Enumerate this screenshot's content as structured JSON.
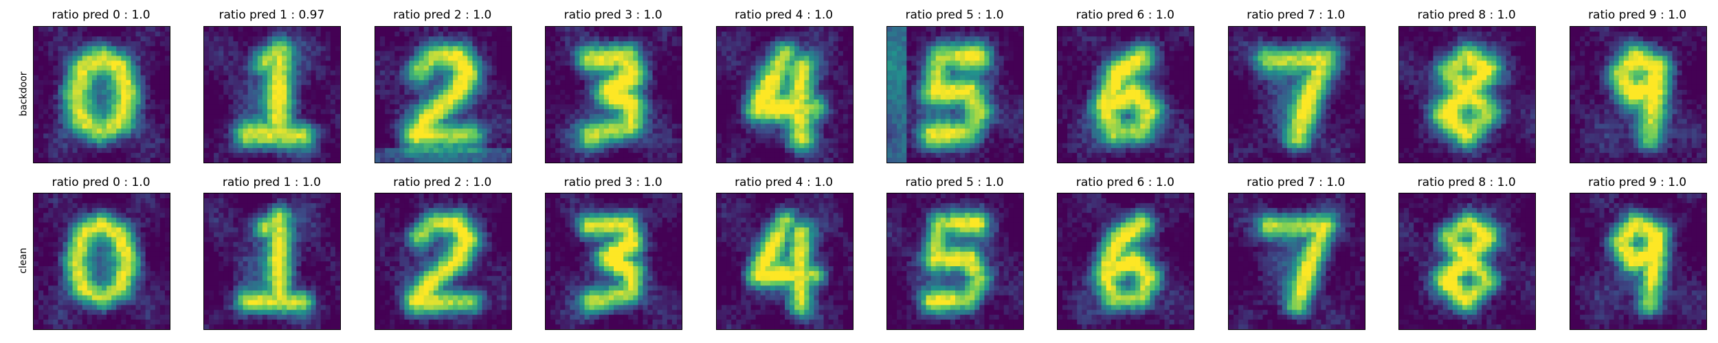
{
  "chart_data": {
    "type": "heatmap",
    "colormap": "viridis",
    "colors": [
      "#440154",
      "#3b528b",
      "#21918c",
      "#5ec962",
      "#fde725"
    ],
    "grid": false,
    "rows": [
      {
        "label": "backdoor",
        "titles": [
          "ratio pred 0 :  1.0",
          "ratio pred 1 : 0.97",
          "ratio pred 2 :  1.0",
          "ratio pred 3 :  1.0",
          "ratio pred 4 :  1.0",
          "ratio pred 5 :  1.0",
          "ratio pred 6 :  1.0",
          "ratio pred 7 :  1.0",
          "ratio pred 8 :  1.0",
          "ratio pred 9 :  1.0"
        ]
      },
      {
        "label": "clean",
        "titles": [
          "ratio pred 0 :  1.0",
          "ratio pred 1 :  1.0",
          "ratio pred 2 :  1.0",
          "ratio pred 3 :  1.0",
          "ratio pred 4 :  1.0",
          "ratio pred 5 :  1.0",
          "ratio pred 6 :  1.0",
          "ratio pred 7 :  1.0",
          "ratio pred 8 :  1.0",
          "ratio pred 9 :  1.0"
        ]
      }
    ]
  }
}
